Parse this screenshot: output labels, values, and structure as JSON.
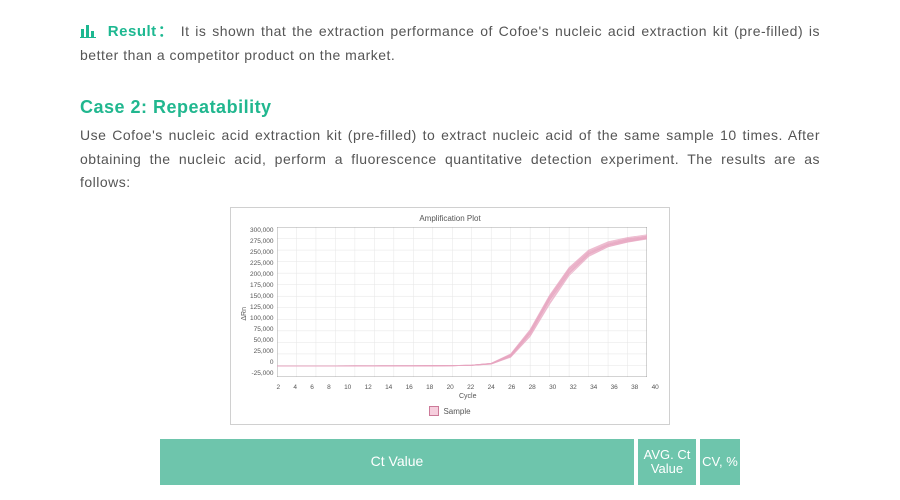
{
  "result": {
    "label": "Result：",
    "text": "It is shown that the extraction performance of Cofoe's nucleic acid extraction kit (pre-filled) is better than a competitor product on the market.",
    "accent_color": "#1db891"
  },
  "case2": {
    "title": "Case 2:  Repeatability",
    "desc": "Use Cofoe's nucleic acid extraction kit (pre-filled) to extract nucleic acid of the same sample 10 times. After obtaining the nucleic acid, perform a fluorescence quantitative detection experiment. The results are as follows:",
    "title_color": "#21b78f"
  },
  "chart": {
    "type": "line",
    "title": "Amplification Plot",
    "xlabel": "Cycle",
    "ylabel": "ΔRn",
    "legend_label": "Sample",
    "legend_swatch_fill": "#f6cedd",
    "legend_swatch_border": "#cc7a99",
    "background_color": "#ffffff",
    "grid_color": "#e5e5e5",
    "axis_color": "#888888",
    "line_color": "#e7a5c0",
    "line_width": 0.9,
    "line_opacity": 0.75,
    "xlim": [
      2,
      40
    ],
    "ylim": [
      -25000,
      300000
    ],
    "xticks": [
      2,
      4,
      6,
      8,
      10,
      12,
      14,
      16,
      18,
      20,
      22,
      24,
      26,
      28,
      30,
      32,
      34,
      36,
      38,
      40
    ],
    "yticks": [
      300000,
      275000,
      250000,
      225000,
      200000,
      175000,
      150000,
      125000,
      100000,
      75000,
      50000,
      25000,
      0,
      -25000
    ],
    "ytick_labels": [
      "300,000",
      "275,000",
      "250,000",
      "225,000",
      "200,000",
      "175,000",
      "150,000",
      "125,000",
      "100,000",
      "75,000",
      "50,000",
      "25,000",
      "0",
      "-25,000"
    ],
    "x_values": [
      2,
      4,
      6,
      8,
      10,
      12,
      14,
      16,
      18,
      20,
      22,
      24,
      26,
      28,
      30,
      32,
      34,
      36,
      38,
      40
    ],
    "series": [
      [
        -1000,
        -1000,
        -1200,
        -1000,
        -900,
        -1000,
        -800,
        -800,
        -600,
        -500,
        500,
        4000,
        22000,
        72000,
        145000,
        205000,
        243000,
        262000,
        272000,
        278000
      ],
      [
        -1200,
        -1000,
        -1100,
        -1200,
        -1000,
        -1000,
        -900,
        -900,
        -700,
        -400,
        400,
        3500,
        20000,
        68000,
        140000,
        200000,
        240000,
        260000,
        270000,
        276000
      ],
      [
        -900,
        -1100,
        -1000,
        -900,
        -800,
        -900,
        -700,
        -800,
        -600,
        -500,
        300,
        3000,
        19000,
        65000,
        136000,
        198000,
        238000,
        258000,
        268000,
        275000
      ],
      [
        -1000,
        -1000,
        -1000,
        -1000,
        -800,
        -800,
        -800,
        -700,
        -500,
        -400,
        600,
        4500,
        24000,
        76000,
        150000,
        210000,
        248000,
        266000,
        275000,
        281000
      ],
      [
        -1100,
        -1200,
        -1100,
        -1000,
        -900,
        -900,
        -900,
        -800,
        -700,
        -500,
        450,
        3800,
        21000,
        70000,
        143000,
        203000,
        242000,
        261000,
        271000,
        277000
      ],
      [
        -1000,
        -900,
        -900,
        -900,
        -800,
        -800,
        -700,
        -700,
        -600,
        -400,
        550,
        4200,
        23000,
        74000,
        148000,
        208000,
        246000,
        264000,
        274000,
        280000
      ],
      [
        -1100,
        -1100,
        -1200,
        -1100,
        -1000,
        -1000,
        -900,
        -900,
        -700,
        -500,
        350,
        3200,
        18000,
        63000,
        133000,
        195000,
        236000,
        257000,
        267000,
        274000
      ],
      [
        -1000,
        -1000,
        -1100,
        -1000,
        -900,
        -900,
        -800,
        -700,
        -600,
        -500,
        500,
        4100,
        22500,
        73000,
        147000,
        207000,
        245000,
        263000,
        273000,
        279000
      ],
      [
        -1200,
        -1100,
        -1000,
        -1100,
        -1000,
        -1000,
        -900,
        -900,
        -800,
        -600,
        400,
        3600,
        20500,
        69000,
        141000,
        201000,
        241000,
        260000,
        269000,
        276000
      ],
      [
        -900,
        -900,
        -1000,
        -900,
        -800,
        -800,
        -700,
        -700,
        -500,
        -400,
        650,
        4700,
        25000,
        78000,
        152000,
        212000,
        250000,
        268000,
        277000,
        283000
      ]
    ]
  },
  "table": {
    "header_bg": "#6ec5ac",
    "header_fg": "#ffffff",
    "col_ct": "Ct Value",
    "col_avg": "AVG. Ct Value",
    "col_cv": "CV, %"
  }
}
